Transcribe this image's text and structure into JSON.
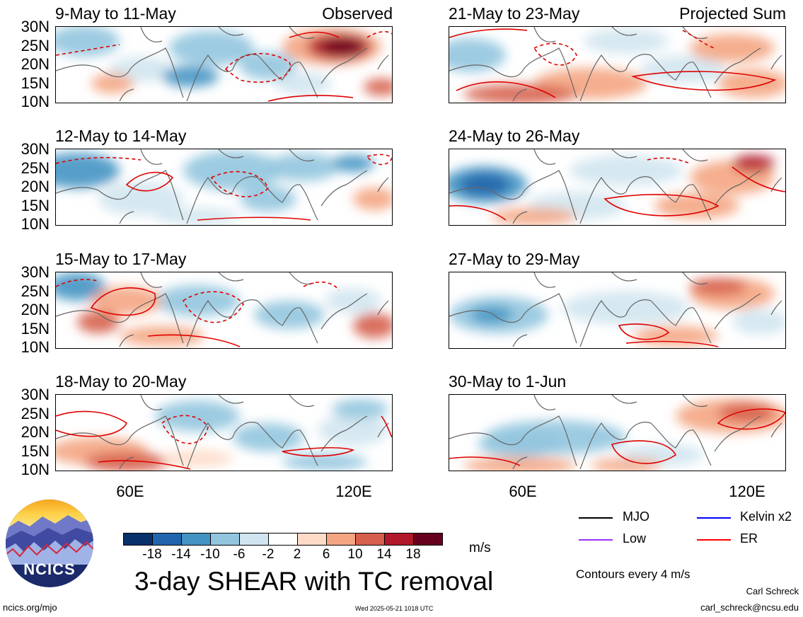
{
  "panels": [
    {
      "title": "9-May to 11-May",
      "tag": "Observed"
    },
    {
      "title": "12-May to 14-May",
      "tag": ""
    },
    {
      "title": "15-May to 17-May",
      "tag": ""
    },
    {
      "title": "18-May to 20-May",
      "tag": ""
    },
    {
      "title": "21-May to 23-May",
      "tag": "Projected Sum"
    },
    {
      "title": "24-May to 26-May",
      "tag": ""
    },
    {
      "title": "27-May to 29-May",
      "tag": ""
    },
    {
      "title": "30-May to 1-Jun",
      "tag": ""
    }
  ],
  "lat_labels": [
    "30N",
    "25N",
    "20N",
    "15N",
    "10N"
  ],
  "lon_labels": [
    "60E",
    "120E"
  ],
  "colorbar": {
    "colors": [
      "#08306b",
      "#2166ac",
      "#4393c3",
      "#92c5de",
      "#d1e5f0",
      "#ffffff",
      "#fddbc7",
      "#f4a582",
      "#d6604d",
      "#b2182b",
      "#67001f"
    ],
    "labels": [
      "-18",
      "-14",
      "-10",
      "-6",
      "-2",
      "2",
      "6",
      "10",
      "14",
      "18"
    ],
    "units": "m/s"
  },
  "main_title": "3-day SHEAR with TC removal",
  "legend": {
    "mjo": {
      "label": "MJO",
      "color": "#000000"
    },
    "kelvin": {
      "label": "Kelvin x2",
      "color": "#0000ff"
    },
    "low": {
      "label": "Low",
      "color": "#9b30ff"
    },
    "er": {
      "label": "ER",
      "color": "#ff0000"
    },
    "note": "Contours every 4 m/s"
  },
  "footer": {
    "left": "ncics.org/mjo",
    "center": "Wed 2025-05-21 1018 UTC",
    "author": "Carl Schreck",
    "email": "carl_schreck@ncsu.edu"
  },
  "logo_text": "NCICS"
}
